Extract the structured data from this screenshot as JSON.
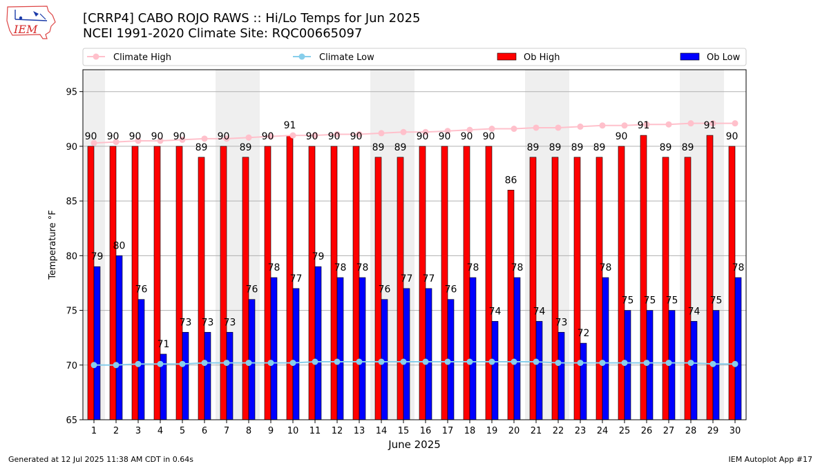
{
  "header": {
    "title_line1": "[CRRP4] CABO ROJO RAWS :: Hi/Lo Temps for Jun 2025",
    "title_line2": "NCEI 1991-2020 Climate Site: RQC00665097",
    "logo_text": "IEM"
  },
  "footer": {
    "generated": "Generated at 12 Jul 2025 11:38 AM CDT in 0.64s",
    "app": "IEM Autoplot App #17"
  },
  "chart_data": {
    "type": "bar",
    "xlabel": "June 2025",
    "ylabel": "Temperature °F",
    "ylim": [
      65,
      97
    ],
    "yticks": [
      65,
      70,
      75,
      80,
      85,
      90,
      95
    ],
    "grid": "horizontal",
    "legend_placement": "top",
    "weekend_shading": [
      [
        1,
        1
      ],
      [
        7,
        8
      ],
      [
        14,
        15
      ],
      [
        21,
        22
      ],
      [
        28,
        29
      ]
    ],
    "categories": [
      1,
      2,
      3,
      4,
      5,
      6,
      7,
      8,
      9,
      10,
      11,
      12,
      13,
      14,
      15,
      16,
      17,
      18,
      19,
      20,
      21,
      22,
      23,
      24,
      25,
      26,
      27,
      28,
      29,
      30
    ],
    "series": [
      {
        "name": "Climate High",
        "kind": "line",
        "color": "#ffc0cb",
        "values": [
          90.3,
          90.4,
          90.5,
          90.5,
          90.6,
          90.7,
          90.7,
          90.8,
          90.9,
          91.0,
          91.0,
          91.1,
          91.1,
          91.2,
          91.3,
          91.3,
          91.4,
          91.5,
          91.6,
          91.6,
          91.7,
          91.7,
          91.8,
          91.9,
          91.9,
          92.0,
          92.0,
          92.1,
          92.1,
          92.1
        ]
      },
      {
        "name": "Climate Low",
        "kind": "line",
        "color": "#87ceeb",
        "values": [
          70.0,
          70.0,
          70.1,
          70.1,
          70.1,
          70.2,
          70.2,
          70.2,
          70.2,
          70.2,
          70.3,
          70.3,
          70.3,
          70.3,
          70.3,
          70.3,
          70.3,
          70.3,
          70.3,
          70.3,
          70.3,
          70.2,
          70.2,
          70.2,
          70.2,
          70.2,
          70.2,
          70.2,
          70.1,
          70.1
        ]
      },
      {
        "name": "Ob High",
        "kind": "bar",
        "color": "#ff0000",
        "values": [
          90,
          90,
          90,
          90,
          90,
          89,
          90,
          89,
          90,
          91,
          90,
          90,
          90,
          89,
          89,
          90,
          90,
          90,
          90,
          86,
          89,
          89,
          89,
          89,
          90,
          91,
          89,
          89,
          91,
          90
        ]
      },
      {
        "name": "Ob Low",
        "kind": "bar",
        "color": "#0000ff",
        "values": [
          79,
          80,
          76,
          71,
          73,
          73,
          73,
          76,
          78,
          77,
          79,
          78,
          78,
          76,
          77,
          77,
          76,
          78,
          74,
          78,
          74,
          73,
          72,
          78,
          75,
          75,
          75,
          74,
          75,
          78
        ]
      }
    ]
  }
}
